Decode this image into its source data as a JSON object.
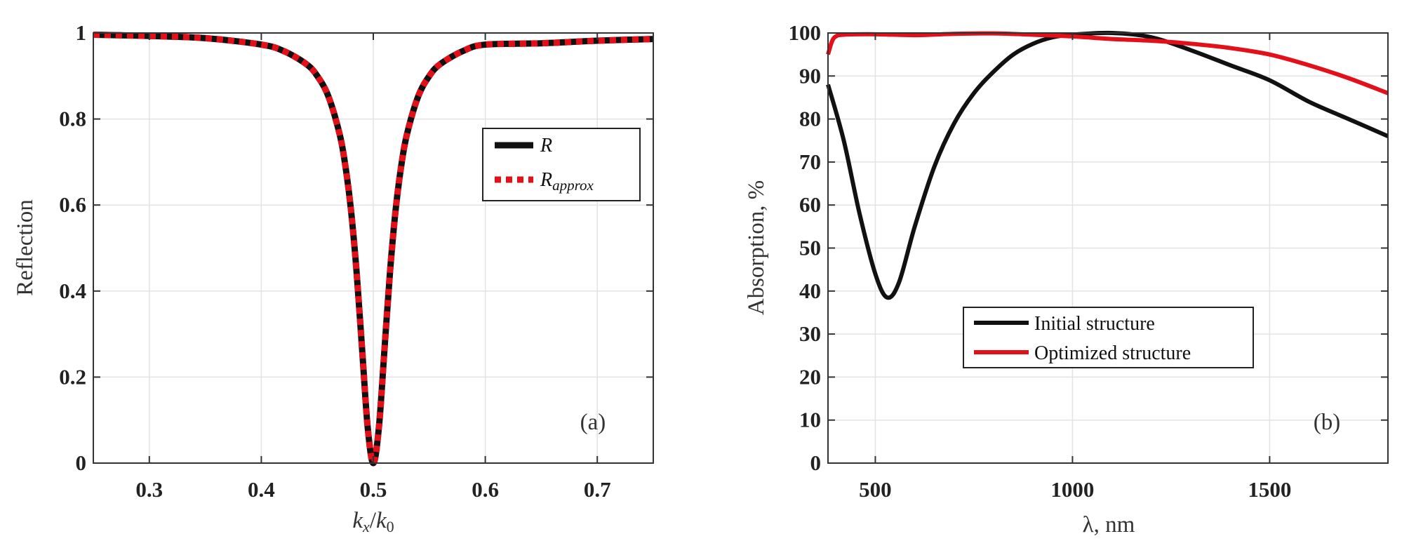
{
  "chart_data": [
    {
      "type": "line",
      "panel_label": "(a)",
      "xlabel": "k_x/k_0",
      "xlabel_parts": {
        "k1": "k",
        "s1": "x",
        "slash": "/",
        "k2": "k",
        "s2": "0"
      },
      "ylabel": "Reflection",
      "xlim": [
        0.25,
        0.75
      ],
      "ylim": [
        0,
        1
      ],
      "xticks": [
        0.3,
        0.4,
        0.5,
        0.6,
        0.7
      ],
      "xtick_labels": [
        "0.3",
        "0.4",
        "0.5",
        "0.6",
        "0.7"
      ],
      "yticks": [
        0,
        0.2,
        0.4,
        0.6,
        0.8,
        1
      ],
      "ytick_labels": [
        "0",
        "0.2",
        "0.4",
        "0.6",
        "0.8",
        "1"
      ],
      "grid": true,
      "legend_position": "center-right",
      "legend": [
        {
          "base": "R",
          "sub": ""
        },
        {
          "base": "R",
          "sub": "approx"
        }
      ],
      "x": [
        0.25,
        0.3,
        0.35,
        0.4,
        0.42,
        0.44,
        0.45,
        0.46,
        0.47,
        0.475,
        0.48,
        0.485,
        0.49,
        0.495,
        0.5,
        0.505,
        0.51,
        0.515,
        0.52,
        0.525,
        0.53,
        0.54,
        0.55,
        0.56,
        0.58,
        0.6,
        0.65,
        0.7,
        0.75
      ],
      "series": [
        {
          "name": "R",
          "color": "#111111",
          "style": "solid",
          "values": [
            0.996,
            0.993,
            0.988,
            0.973,
            0.958,
            0.928,
            0.9,
            0.852,
            0.764,
            0.692,
            0.59,
            0.447,
            0.265,
            0.083,
            0.0,
            0.083,
            0.265,
            0.447,
            0.59,
            0.692,
            0.764,
            0.852,
            0.9,
            0.928,
            0.958,
            0.973,
            0.976,
            0.982,
            0.986
          ]
        },
        {
          "name": "R_approx",
          "color": "#e3101a",
          "style": "dotted",
          "values": [
            0.996,
            0.993,
            0.988,
            0.973,
            0.958,
            0.928,
            0.9,
            0.852,
            0.764,
            0.692,
            0.59,
            0.447,
            0.265,
            0.083,
            0.0,
            0.083,
            0.265,
            0.447,
            0.59,
            0.692,
            0.764,
            0.852,
            0.9,
            0.928,
            0.958,
            0.973,
            0.976,
            0.982,
            0.986
          ]
        }
      ]
    },
    {
      "type": "line",
      "panel_label": "(b)",
      "xlabel": "λ, nm",
      "ylabel": "Absorption, %",
      "xlim": [
        380,
        1800
      ],
      "ylim": [
        0,
        100
      ],
      "xticks": [
        500,
        1000,
        1500
      ],
      "xtick_labels": [
        "500",
        "1000",
        "1500"
      ],
      "yticks": [
        0,
        10,
        20,
        30,
        40,
        50,
        60,
        70,
        80,
        90,
        100
      ],
      "ytick_labels": [
        "0",
        "10",
        "20",
        "30",
        "40",
        "50",
        "60",
        "70",
        "80",
        "90",
        "100"
      ],
      "grid": true,
      "legend_position": "center",
      "legend": [
        {
          "base": "Initial structure",
          "sub": ""
        },
        {
          "base": "Optimized structure",
          "sub": ""
        }
      ],
      "series": [
        {
          "name": "Initial structure",
          "color": "#111111",
          "x": [
            380,
            420,
            460,
            500,
            530,
            560,
            600,
            650,
            700,
            750,
            800,
            850,
            900,
            950,
            1000,
            1100,
            1200,
            1300,
            1400,
            1500,
            1600,
            1700,
            1800
          ],
          "values": [
            88,
            75,
            58,
            44,
            38.5,
            42,
            55,
            69,
            79,
            86,
            91,
            95,
            97.5,
            99,
            99.6,
            100,
            99,
            96,
            92.5,
            89,
            84,
            80,
            76
          ]
        },
        {
          "name": "Optimized structure",
          "color": "#e3101a",
          "x": [
            380,
            390,
            400,
            420,
            500,
            600,
            700,
            800,
            900,
            1000,
            1100,
            1200,
            1300,
            1400,
            1500,
            1600,
            1700,
            1800
          ],
          "values": [
            95,
            98,
            99.2,
            99.6,
            99.7,
            99.5,
            99.8,
            99.9,
            99.6,
            99.2,
            98.6,
            98.2,
            97.5,
            96.5,
            95,
            92.5,
            89.5,
            86
          ]
        }
      ]
    }
  ]
}
